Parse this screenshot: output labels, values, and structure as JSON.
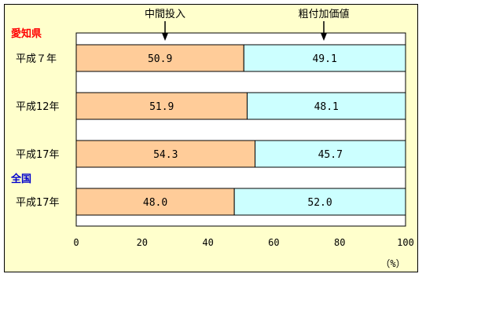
{
  "colors": {
    "background": "#ffffcc",
    "segment_intermediate": "#ffcc99",
    "segment_value_added": "#ccffff",
    "group_aichi": "#ff0000",
    "group_national": "#0000cc"
  },
  "groups": {
    "aichi": "愛知県",
    "national": "全国"
  },
  "chart_data": {
    "type": "bar",
    "orientation": "horizontal",
    "stacked": true,
    "categories": [
      "平成７年",
      "平成12年",
      "平成17年",
      "平成17年"
    ],
    "series": [
      {
        "name": "中間投入",
        "values": [
          50.9,
          51.9,
          54.3,
          48.0
        ],
        "labels": [
          "50.9",
          "51.9",
          "54.3",
          "48.0"
        ]
      },
      {
        "name": "粗付加価値",
        "values": [
          49.1,
          48.1,
          45.7,
          52.0
        ],
        "labels": [
          "49.1",
          "48.1",
          "45.7",
          "52.0"
        ]
      }
    ],
    "xlim": [
      0,
      100
    ],
    "xticks": [
      "0",
      "20",
      "40",
      "60",
      "80",
      "100"
    ],
    "xunit": "（%）",
    "grid": false,
    "legend": "top"
  }
}
